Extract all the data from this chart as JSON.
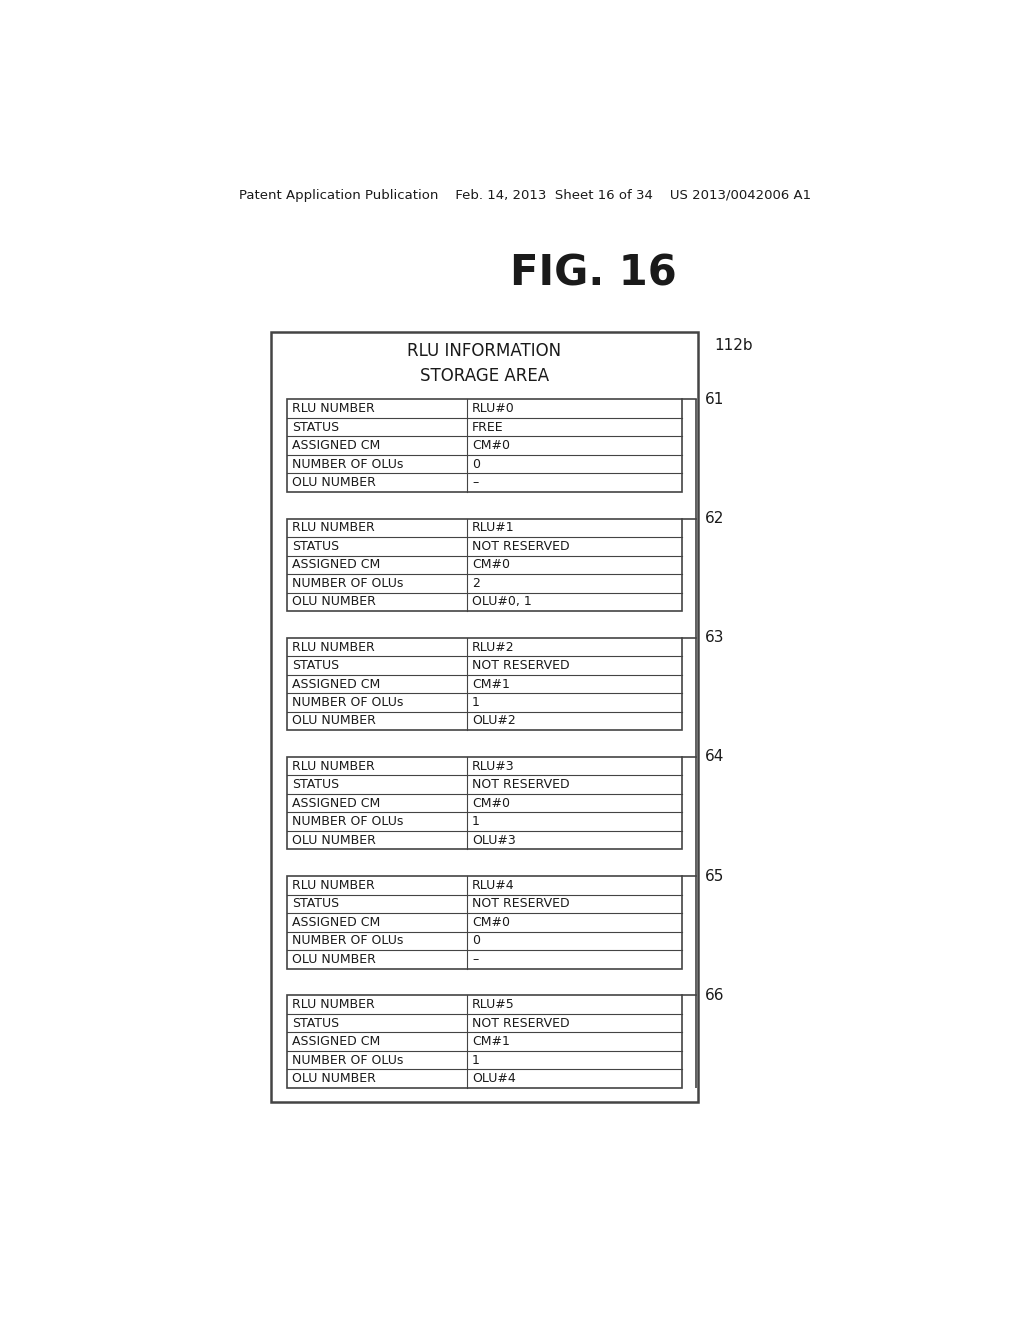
{
  "bg_color": "#ffffff",
  "header_text": "Patent Application Publication    Feb. 14, 2013  Sheet 16 of 34    US 2013/0042006 A1",
  "fig_title": "FIG. 16",
  "outer_box_label": "112b",
  "storage_area_title": "RLU INFORMATION\nSTORAGE AREA",
  "tables": [
    {
      "label": "61",
      "rows": [
        [
          "RLU NUMBER",
          "RLU#0"
        ],
        [
          "STATUS",
          "FREE"
        ],
        [
          "ASSIGNED CM",
          "CM#0"
        ],
        [
          "NUMBER OF OLUs",
          "0"
        ],
        [
          "OLU NUMBER",
          "–"
        ]
      ]
    },
    {
      "label": "62",
      "rows": [
        [
          "RLU NUMBER",
          "RLU#1"
        ],
        [
          "STATUS",
          "NOT RESERVED"
        ],
        [
          "ASSIGNED CM",
          "CM#0"
        ],
        [
          "NUMBER OF OLUs",
          "2"
        ],
        [
          "OLU NUMBER",
          "OLU#0, 1"
        ]
      ]
    },
    {
      "label": "63",
      "rows": [
        [
          "RLU NUMBER",
          "RLU#2"
        ],
        [
          "STATUS",
          "NOT RESERVED"
        ],
        [
          "ASSIGNED CM",
          "CM#1"
        ],
        [
          "NUMBER OF OLUs",
          "1"
        ],
        [
          "OLU NUMBER",
          "OLU#2"
        ]
      ]
    },
    {
      "label": "64",
      "rows": [
        [
          "RLU NUMBER",
          "RLU#3"
        ],
        [
          "STATUS",
          "NOT RESERVED"
        ],
        [
          "ASSIGNED CM",
          "CM#0"
        ],
        [
          "NUMBER OF OLUs",
          "1"
        ],
        [
          "OLU NUMBER",
          "OLU#3"
        ]
      ]
    },
    {
      "label": "65",
      "rows": [
        [
          "RLU NUMBER",
          "RLU#4"
        ],
        [
          "STATUS",
          "NOT RESERVED"
        ],
        [
          "ASSIGNED CM",
          "CM#0"
        ],
        [
          "NUMBER OF OLUs",
          "0"
        ],
        [
          "OLU NUMBER",
          "–"
        ]
      ]
    },
    {
      "label": "66",
      "rows": [
        [
          "RLU NUMBER",
          "RLU#5"
        ],
        [
          "STATUS",
          "NOT RESERVED"
        ],
        [
          "ASSIGNED CM",
          "CM#1"
        ],
        [
          "NUMBER OF OLUs",
          "1"
        ],
        [
          "OLU NUMBER",
          "OLU#4"
        ]
      ]
    }
  ]
}
